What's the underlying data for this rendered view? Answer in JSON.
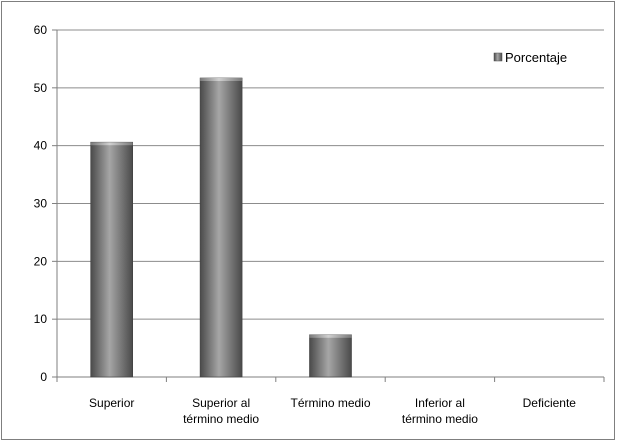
{
  "chart_data": {
    "type": "bar",
    "categories": [
      [
        "Superior"
      ],
      [
        "Superior al",
        "término medio"
      ],
      [
        "Término medio"
      ],
      [
        "Inferior al",
        "término medio"
      ],
      [
        "Deficiente"
      ]
    ],
    "series": [
      {
        "name": "Porcentaje",
        "values": [
          40.6,
          51.7,
          7.3,
          0,
          0
        ]
      }
    ],
    "title": "",
    "xlabel": "",
    "ylabel": "",
    "ylim": [
      0,
      60
    ],
    "yticks": [
      0,
      10,
      20,
      30,
      40,
      50,
      60
    ],
    "grid": true,
    "legend_position": "top-right",
    "colors": {
      "bar_dark": "#4a4a4a",
      "bar_light": "#a6a6a6",
      "grid": "#8c8c8c",
      "axis": "#7f7f7f"
    }
  }
}
